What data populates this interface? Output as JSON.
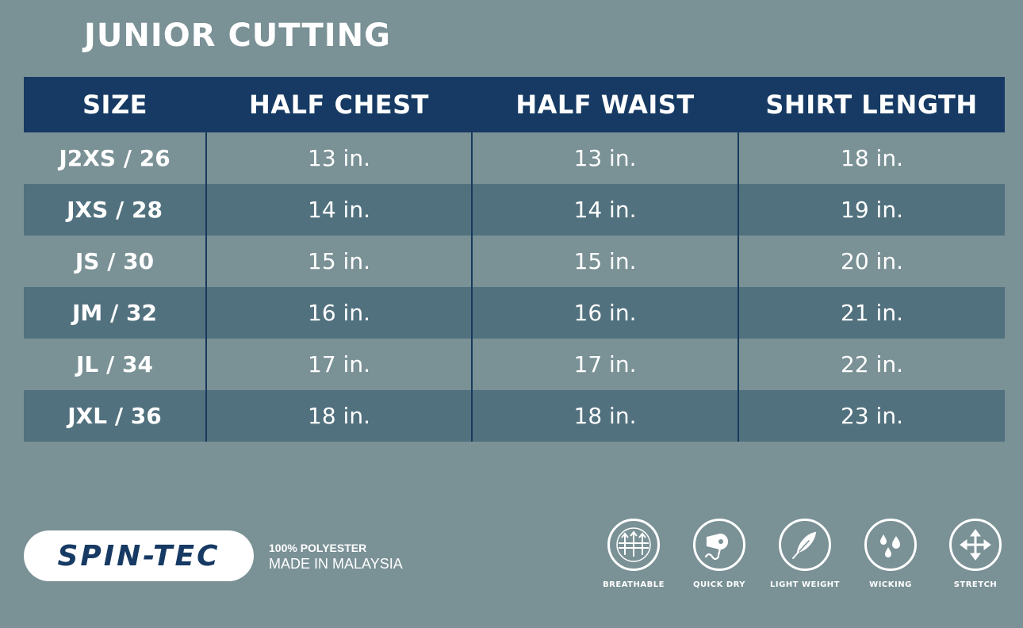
{
  "title": "JUNIOR CUTTING",
  "table": {
    "headers": [
      "SIZE",
      "HALF CHEST",
      "HALF WAIST",
      "SHIRT LENGTH"
    ],
    "rows": [
      [
        "J2XS / 26",
        "13 in.",
        "13 in.",
        "18 in."
      ],
      [
        "JXS / 28",
        "14 in.",
        "14 in.",
        "19 in."
      ],
      [
        "JS / 30",
        "15 in.",
        "15 in.",
        "20 in."
      ],
      [
        "JM / 32",
        "16 in.",
        "16 in.",
        "21 in."
      ],
      [
        "JL / 34",
        "17 in.",
        "17 in.",
        "22 in."
      ],
      [
        "JXL / 36",
        "18 in.",
        "18 in.",
        "23 in."
      ]
    ]
  },
  "brand": {
    "logo_text": "SPIN-TEC"
  },
  "material": {
    "line1": "100% POLYESTER",
    "line2": "MADE IN MALAYSIA"
  },
  "features": [
    {
      "label": "BREATHABLE",
      "icon": "breathable-icon"
    },
    {
      "label": "QUICK DRY",
      "icon": "hair-dryer-icon"
    },
    {
      "label": "LIGHT WEIGHT",
      "icon": "feather-icon"
    },
    {
      "label": "WICKING",
      "icon": "droplets-icon"
    },
    {
      "label": "STRETCH",
      "icon": "stretch-arrows-icon"
    }
  ],
  "colors": {
    "background": "#7a9196",
    "header": "#163a63",
    "row_dark": "#52717e"
  }
}
